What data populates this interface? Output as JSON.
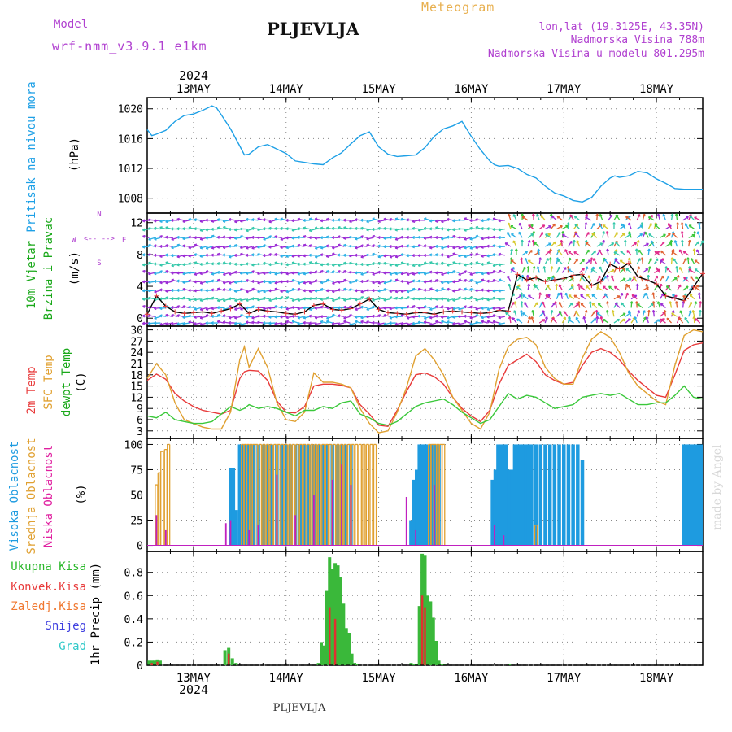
{
  "header": {
    "model_label": "Model",
    "model_name": "wrf-nmm_v3.9.1 e1km",
    "city": "PLJEVLJA",
    "product": "Meteogram",
    "lonlat": "lon,lat (19.3125E, 43.35N)",
    "elev": "Nadmorska Visina 788m",
    "elev_model": "Nadmorska Visina u modelu 801.295m",
    "credit": "made by Angel",
    "footer_city": "PLJEVLJA"
  },
  "time_axis": {
    "year": "2024",
    "days": [
      "13MAY",
      "14MAY",
      "15MAY",
      "16MAY",
      "17MAY",
      "18MAY"
    ]
  },
  "colors": {
    "pressure": "#1ea0e6",
    "temp2m": "#e83a3a",
    "sfc": "#e0a030",
    "dewpt": "#3ac83a",
    "high_cloud": "#1e9be0",
    "mid_cloud": "#e0a030",
    "low_cloud": "#c020c0",
    "total_precip": "#3ab83a",
    "conv_precip": "#e03030",
    "snow_precip": "#4040e0",
    "grad": "#30c8c8"
  },
  "panels": {
    "pressure": {
      "label1": "Pritisak na nivou mora",
      "unit": "(hPa)"
    },
    "wind": {
      "label1": "10m Vjetar",
      "label2": "Brzina i Pravac",
      "unit": "(m/s)",
      "compass_n": "N",
      "compass_s": "S",
      "compass_w": "W",
      "compass_e": "E",
      "compass_a": "<-- -->"
    },
    "temp": {
      "label1": "2m Temp",
      "label2": "SFC Temp",
      "label3": "dewpt Temp",
      "unit": "(C)"
    },
    "cloud": {
      "label1": "Visoka Oblacnost",
      "label2": "Srednja Oblacnost",
      "label3": "Niska Oblacnost",
      "unit": "(%)"
    },
    "precip": {
      "label_total": "Ukupna Kisa",
      "label_conv": "Konvek.Kisa",
      "label_snow_z": "Zaledj.Kisa",
      "label_snow": "Snijeg",
      "label_grad": "Grad",
      "unit": "1hr Precip (mm)"
    }
  },
  "chart_data": [
    {
      "type": "line",
      "title": "Pritisak na nivou mora",
      "ylabel": "(hPa)",
      "x_days": [
        12.5,
        18.5
      ],
      "ylim": [
        1006,
        1021.5
      ],
      "yticks": [
        1008,
        1012,
        1016,
        1020
      ],
      "series": [
        {
          "name": "Pritisak na nivou mora",
          "x": [
            12.5,
            12.55,
            12.6,
            12.7,
            12.8,
            12.9,
            13.0,
            13.1,
            13.2,
            13.25,
            13.3,
            13.4,
            13.5,
            13.55,
            13.6,
            13.7,
            13.8,
            13.9,
            14.0,
            14.1,
            14.2,
            14.3,
            14.4,
            14.5,
            14.6,
            14.7,
            14.8,
            14.9,
            15.0,
            15.1,
            15.2,
            15.3,
            15.4,
            15.5,
            15.6,
            15.7,
            15.8,
            15.9,
            16.0,
            16.1,
            16.2,
            16.25,
            16.3,
            16.4,
            16.5,
            16.6,
            16.7,
            16.8,
            16.9,
            17.0,
            17.1,
            17.2,
            17.3,
            17.4,
            17.5,
            17.55,
            17.6,
            17.7,
            17.8,
            17.9,
            18.0,
            18.1,
            18.2,
            18.3,
            18.4,
            18.5
          ],
          "values": [
            1017.2,
            1016.4,
            1016.6,
            1017.1,
            1018.3,
            1019.1,
            1019.3,
            1019.8,
            1020.4,
            1020.1,
            1019.2,
            1017.3,
            1015.0,
            1013.8,
            1013.9,
            1014.9,
            1015.2,
            1014.6,
            1014.0,
            1013.0,
            1012.8,
            1012.6,
            1012.5,
            1013.4,
            1014.1,
            1015.3,
            1016.4,
            1016.9,
            1014.9,
            1013.9,
            1013.6,
            1013.7,
            1013.8,
            1014.8,
            1016.3,
            1017.3,
            1017.7,
            1018.3,
            1016.3,
            1014.5,
            1013.0,
            1012.5,
            1012.3,
            1012.4,
            1012.0,
            1011.2,
            1010.7,
            1009.6,
            1008.7,
            1008.3,
            1007.7,
            1007.5,
            1008.1,
            1009.6,
            1010.7,
            1011.0,
            1010.8,
            1011.0,
            1011.6,
            1011.4,
            1010.6,
            1010.0,
            1009.3,
            1009.2,
            1009.2,
            1009.2
          ]
        }
      ]
    },
    {
      "type": "line",
      "title": "10m Vjetar Brzina i Pravac",
      "ylabel": "(m/s)",
      "x_days": [
        12.5,
        18.5
      ],
      "ylim": [
        -1,
        13.2
      ],
      "yticks": [
        0,
        4,
        8,
        12
      ],
      "series": [
        {
          "name": "10m Vjetar",
          "x": [
            12.5,
            12.6,
            12.7,
            12.8,
            12.9,
            13.0,
            13.1,
            13.2,
            13.3,
            13.4,
            13.5,
            13.6,
            13.7,
            13.8,
            13.9,
            14.0,
            14.1,
            14.2,
            14.3,
            14.4,
            14.5,
            14.6,
            14.7,
            14.8,
            14.9,
            15.0,
            15.1,
            15.2,
            15.3,
            15.4,
            15.5,
            15.6,
            15.7,
            15.8,
            15.9,
            16.0,
            16.1,
            16.2,
            16.3,
            16.4,
            16.5,
            16.6,
            16.7,
            16.8,
            16.9,
            17.0,
            17.1,
            17.2,
            17.3,
            17.4,
            17.5,
            17.6,
            17.7,
            17.8,
            17.9,
            18.0,
            18.1,
            18.2,
            18.3,
            18.4,
            18.5
          ],
          "values": [
            0.5,
            2.8,
            1.5,
            0.8,
            0.6,
            0.7,
            0.8,
            0.6,
            0.9,
            1.2,
            1.8,
            0.6,
            1.1,
            0.9,
            0.8,
            0.6,
            0.5,
            0.8,
            1.6,
            1.8,
            1.1,
            1.0,
            1.2,
            1.8,
            2.4,
            1.1,
            0.7,
            0.6,
            0.5,
            0.7,
            0.7,
            0.5,
            0.8,
            0.9,
            0.8,
            0.7,
            0.6,
            0.7,
            1.0,
            0.9,
            5.5,
            4.8,
            5.1,
            4.6,
            4.8,
            5.0,
            5.4,
            5.5,
            4.1,
            4.6,
            6.8,
            6.2,
            6.9,
            5.2,
            4.8,
            4.3,
            2.8,
            2.5,
            2.2,
            3.9,
            5.6
          ]
        }
      ]
    },
    {
      "type": "line",
      "title": "2m Temp / SFC Temp / dewpt Temp",
      "ylabel": "(C)",
      "x_days": [
        12.5,
        18.5
      ],
      "ylim": [
        1,
        31
      ],
      "yticks": [
        3,
        6,
        9,
        12,
        15,
        18,
        21,
        24,
        27,
        30
      ],
      "x": [
        12.5,
        12.6,
        12.7,
        12.8,
        12.9,
        13.0,
        13.1,
        13.2,
        13.3,
        13.4,
        13.5,
        13.55,
        13.6,
        13.7,
        13.8,
        13.9,
        14.0,
        14.1,
        14.2,
        14.3,
        14.4,
        14.5,
        14.6,
        14.7,
        14.8,
        14.9,
        15.0,
        15.1,
        15.2,
        15.3,
        15.4,
        15.5,
        15.6,
        15.7,
        15.8,
        15.9,
        16.0,
        16.1,
        16.2,
        16.3,
        16.4,
        16.5,
        16.6,
        16.7,
        16.8,
        16.9,
        17.0,
        17.1,
        17.2,
        17.3,
        17.4,
        17.5,
        17.6,
        17.7,
        17.8,
        17.9,
        18.0,
        18.1,
        18.2,
        18.3,
        18.4,
        18.5
      ],
      "series": [
        {
          "name": "2m Temp",
          "values": [
            16.5,
            18.2,
            16.8,
            13.0,
            11.0,
            9.5,
            8.5,
            8.0,
            7.5,
            8.5,
            17.0,
            18.8,
            19.2,
            19.0,
            16.5,
            11.0,
            8.0,
            7.8,
            9.5,
            15.0,
            15.5,
            15.5,
            15.2,
            14.5,
            10.0,
            7.5,
            4.5,
            4.2,
            8.5,
            13.5,
            18.0,
            18.5,
            17.5,
            15.5,
            12.0,
            9.0,
            7.0,
            5.5,
            8.5,
            15.5,
            20.5,
            22.0,
            23.5,
            21.5,
            18.0,
            16.5,
            15.5,
            16.0,
            20.5,
            24.0,
            25.0,
            24.0,
            22.0,
            19.0,
            16.5,
            14.5,
            12.5,
            12.0,
            18.0,
            24.5,
            26.0,
            26.5
          ]
        },
        {
          "name": "SFC Temp",
          "values": [
            17.0,
            21.0,
            18.0,
            10.5,
            6.0,
            5.0,
            4.0,
            3.5,
            3.5,
            8.0,
            22.0,
            25.5,
            20.0,
            25.0,
            20.0,
            10.5,
            6.0,
            5.5,
            8.0,
            18.5,
            16.0,
            16.0,
            15.5,
            14.5,
            9.0,
            5.0,
            2.5,
            3.0,
            8.0,
            14.5,
            23.0,
            25.0,
            22.0,
            18.0,
            12.0,
            8.5,
            5.0,
            3.5,
            8.0,
            19.5,
            25.5,
            27.5,
            28.0,
            26.0,
            20.0,
            17.0,
            15.5,
            15.5,
            22.5,
            27.5,
            29.5,
            28.0,
            24.0,
            18.5,
            15.0,
            13.0,
            11.0,
            10.0,
            20.5,
            28.5,
            30.0,
            29.5
          ]
        },
        {
          "name": "dewpt Temp",
          "values": [
            7.0,
            6.5,
            8.0,
            6.0,
            5.5,
            5.0,
            5.0,
            5.5,
            7.5,
            9.5,
            8.5,
            9.0,
            10.0,
            9.0,
            9.5,
            9.0,
            8.0,
            7.0,
            8.5,
            8.5,
            9.5,
            9.0,
            10.5,
            11.0,
            7.5,
            6.5,
            5.0,
            4.5,
            5.5,
            7.5,
            9.5,
            10.5,
            11.0,
            11.5,
            10.0,
            8.0,
            6.5,
            5.0,
            6.0,
            9.5,
            13.0,
            11.5,
            12.5,
            12.0,
            10.5,
            9.0,
            9.5,
            10.0,
            12.0,
            12.5,
            13.0,
            12.5,
            13.0,
            11.5,
            10.0,
            10.0,
            10.5,
            10.5,
            12.5,
            15.0,
            12.0,
            11.5
          ]
        }
      ]
    },
    {
      "type": "bar",
      "title": "Visoka / Srednja / Niska Oblacnost",
      "ylabel": "(%)",
      "x_days": [
        12.5,
        18.5
      ],
      "ylim": [
        0,
        100
      ],
      "yticks": [
        0,
        25,
        50,
        75,
        100
      ],
      "series": [
        {
          "name": "Visoka Oblacnost",
          "x": [
            13.4,
            13.43,
            13.46,
            13.5,
            13.53,
            13.56,
            13.59,
            13.62,
            13.65,
            13.7,
            13.75,
            13.8,
            13.85,
            13.9,
            13.95,
            14.0,
            14.05,
            14.1,
            14.15,
            14.2,
            14.25,
            14.3,
            14.35,
            14.4,
            14.45,
            14.5,
            14.55,
            14.6,
            14.65,
            14.7,
            15.35,
            15.38,
            15.41,
            15.44,
            15.47,
            15.5,
            15.53,
            15.56,
            15.59,
            15.62,
            15.65,
            16.23,
            16.26,
            16.29,
            16.32,
            16.35,
            16.38,
            16.41,
            16.44,
            16.47,
            16.5,
            16.53,
            16.56,
            16.59,
            16.62,
            16.65,
            16.7,
            16.75,
            16.8,
            16.85,
            16.9,
            16.95,
            17.0,
            17.05,
            17.1,
            17.15,
            17.2,
            18.3,
            18.33,
            18.36,
            18.39,
            18.42,
            18.45,
            18.48
          ],
          "values": [
            77,
            77,
            35,
            100,
            100,
            100,
            100,
            100,
            100,
            100,
            100,
            100,
            100,
            100,
            100,
            100,
            100,
            100,
            100,
            100,
            100,
            100,
            100,
            100,
            100,
            100,
            100,
            100,
            100,
            100,
            25,
            65,
            75,
            100,
            100,
            100,
            100,
            100,
            100,
            100,
            100,
            65,
            75,
            100,
            100,
            100,
            100,
            75,
            75,
            100,
            100,
            100,
            100,
            100,
            100,
            100,
            100,
            100,
            100,
            100,
            100,
            100,
            100,
            100,
            100,
            100,
            85,
            100,
            100,
            100,
            100,
            100,
            100,
            100
          ]
        },
        {
          "name": "Srednja Oblacnost",
          "x": [
            12.6,
            12.63,
            12.66,
            12.7,
            12.73,
            13.53,
            13.56,
            13.59,
            13.62,
            13.65,
            13.68,
            13.72,
            13.76,
            13.8,
            13.84,
            13.88,
            13.92,
            13.96,
            14.0,
            14.04,
            14.08,
            14.12,
            14.16,
            14.2,
            14.24,
            14.28,
            14.32,
            14.36,
            14.4,
            14.44,
            14.48,
            14.52,
            14.56,
            14.6,
            14.64,
            14.68,
            14.72,
            14.76,
            14.8,
            14.84,
            14.88,
            14.92,
            14.96,
            15.55,
            15.58,
            15.61,
            15.64,
            15.67,
            15.7,
            16.7
          ],
          "values": [
            60,
            72,
            93,
            95,
            100,
            100,
            100,
            100,
            100,
            100,
            100,
            100,
            100,
            100,
            100,
            100,
            100,
            100,
            100,
            100,
            100,
            100,
            100,
            100,
            100,
            100,
            100,
            100,
            100,
            100,
            100,
            100,
            100,
            100,
            100,
            100,
            100,
            100,
            100,
            100,
            100,
            100,
            100,
            100,
            100,
            100,
            100,
            100,
            100,
            20
          ]
        },
        {
          "name": "Niska Oblacnost",
          "x": [
            12.6,
            12.7,
            13.35,
            13.4,
            13.6,
            13.7,
            13.9,
            14.1,
            14.3,
            14.5,
            14.6,
            14.7,
            15.3,
            15.4,
            15.6,
            16.25,
            16.35
          ],
          "values": [
            30,
            15,
            22,
            25,
            15,
            20,
            70,
            30,
            50,
            65,
            80,
            60,
            48,
            15,
            60,
            20,
            10
          ]
        }
      ]
    },
    {
      "type": "bar",
      "title": "1hr Precip",
      "ylabel": "1hr Precip (mm)",
      "x_days": [
        12.5,
        18.5
      ],
      "ylim": [
        0,
        0.98
      ],
      "yticks": [
        0,
        0.2,
        0.4,
        0.6,
        0.8
      ],
      "series": [
        {
          "name": "Ukupna Kisa",
          "x": [
            12.52,
            12.55,
            12.58,
            12.61,
            12.64,
            13.34,
            13.38,
            13.42,
            13.46,
            14.35,
            14.38,
            14.41,
            14.44,
            14.47,
            14.5,
            14.53,
            14.56,
            14.59,
            14.62,
            14.65,
            14.68,
            14.71,
            14.74,
            14.77,
            15.35,
            15.38,
            15.41,
            15.44,
            15.47,
            15.5,
            15.53,
            15.56,
            15.59,
            15.62,
            15.65,
            15.68,
            15.71,
            16.41
          ],
          "values": [
            0.04,
            0.04,
            0.04,
            0.05,
            0.04,
            0.13,
            0.15,
            0.06,
            0.02,
            0.02,
            0.2,
            0.17,
            0.64,
            0.93,
            0.83,
            0.88,
            0.86,
            0.76,
            0.53,
            0.32,
            0.28,
            0.1,
            0.02,
            0.01,
            0.02,
            0.01,
            0.01,
            0.51,
            0.96,
            0.95,
            0.6,
            0.55,
            0.41,
            0.21,
            0.04,
            0.01,
            0.01,
            0.01
          ]
        },
        {
          "name": "Konvek.Kisa",
          "x": [
            12.55,
            12.61,
            13.38,
            14.47,
            14.53,
            15.47,
            15.5
          ],
          "values": [
            0.02,
            0.03,
            0.1,
            0.5,
            0.4,
            0.6,
            0.5
          ]
        }
      ]
    }
  ]
}
